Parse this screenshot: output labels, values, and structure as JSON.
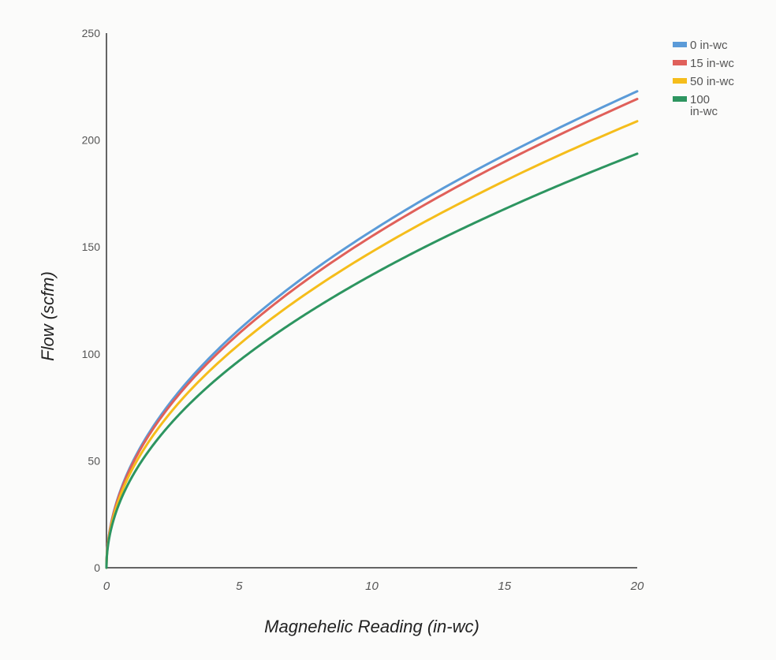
{
  "chart_data": {
    "type": "line",
    "title": "",
    "xlabel": "Magnehelic Reading (in-wc)",
    "ylabel": "Flow (scfm)",
    "xlim": [
      0,
      20
    ],
    "ylim": [
      0,
      250
    ],
    "xticks": [
      "0",
      "5",
      "10",
      "15",
      "20"
    ],
    "yticks": [
      "0",
      "50",
      "100",
      "150",
      "200",
      "250"
    ],
    "grid": false,
    "legend_position": "top-right",
    "x": [
      0,
      0.25,
      0.5,
      1,
      2,
      3,
      4,
      5,
      6,
      8,
      10,
      12,
      14,
      16,
      18,
      20
    ],
    "series": [
      {
        "name": "0 in-wc",
        "color": "#5b9bd8",
        "values": [
          0,
          24.9,
          35.2,
          49.8,
          70.4,
          86.3,
          99.6,
          111.4,
          122,
          140.9,
          157.5,
          172.6,
          186.4,
          199.2,
          211.3,
          222.8
        ]
      },
      {
        "name": "15 in-wc",
        "color": "#e0605a",
        "values": [
          0,
          24.5,
          34.6,
          49.0,
          69.3,
          84.9,
          98.0,
          109.6,
          120.0,
          138.6,
          155.0,
          169.8,
          183.4,
          196.0,
          207.9,
          219.2
        ]
      },
      {
        "name": "50 in-wc",
        "color": "#f5bd1b",
        "values": [
          0,
          23.3,
          33.0,
          46.7,
          66.0,
          80.9,
          93.4,
          104.4,
          114.4,
          132.1,
          147.7,
          161.8,
          174.7,
          186.8,
          198.1,
          208.8
        ]
      },
      {
        "name": "100 in-wc",
        "color": "#2d9560",
        "values": [
          0,
          21.6,
          30.6,
          43.3,
          61.2,
          75.0,
          86.6,
          96.8,
          106.0,
          122.4,
          136.9,
          150.0,
          162.0,
          173.2,
          183.7,
          193.6
        ]
      }
    ]
  }
}
